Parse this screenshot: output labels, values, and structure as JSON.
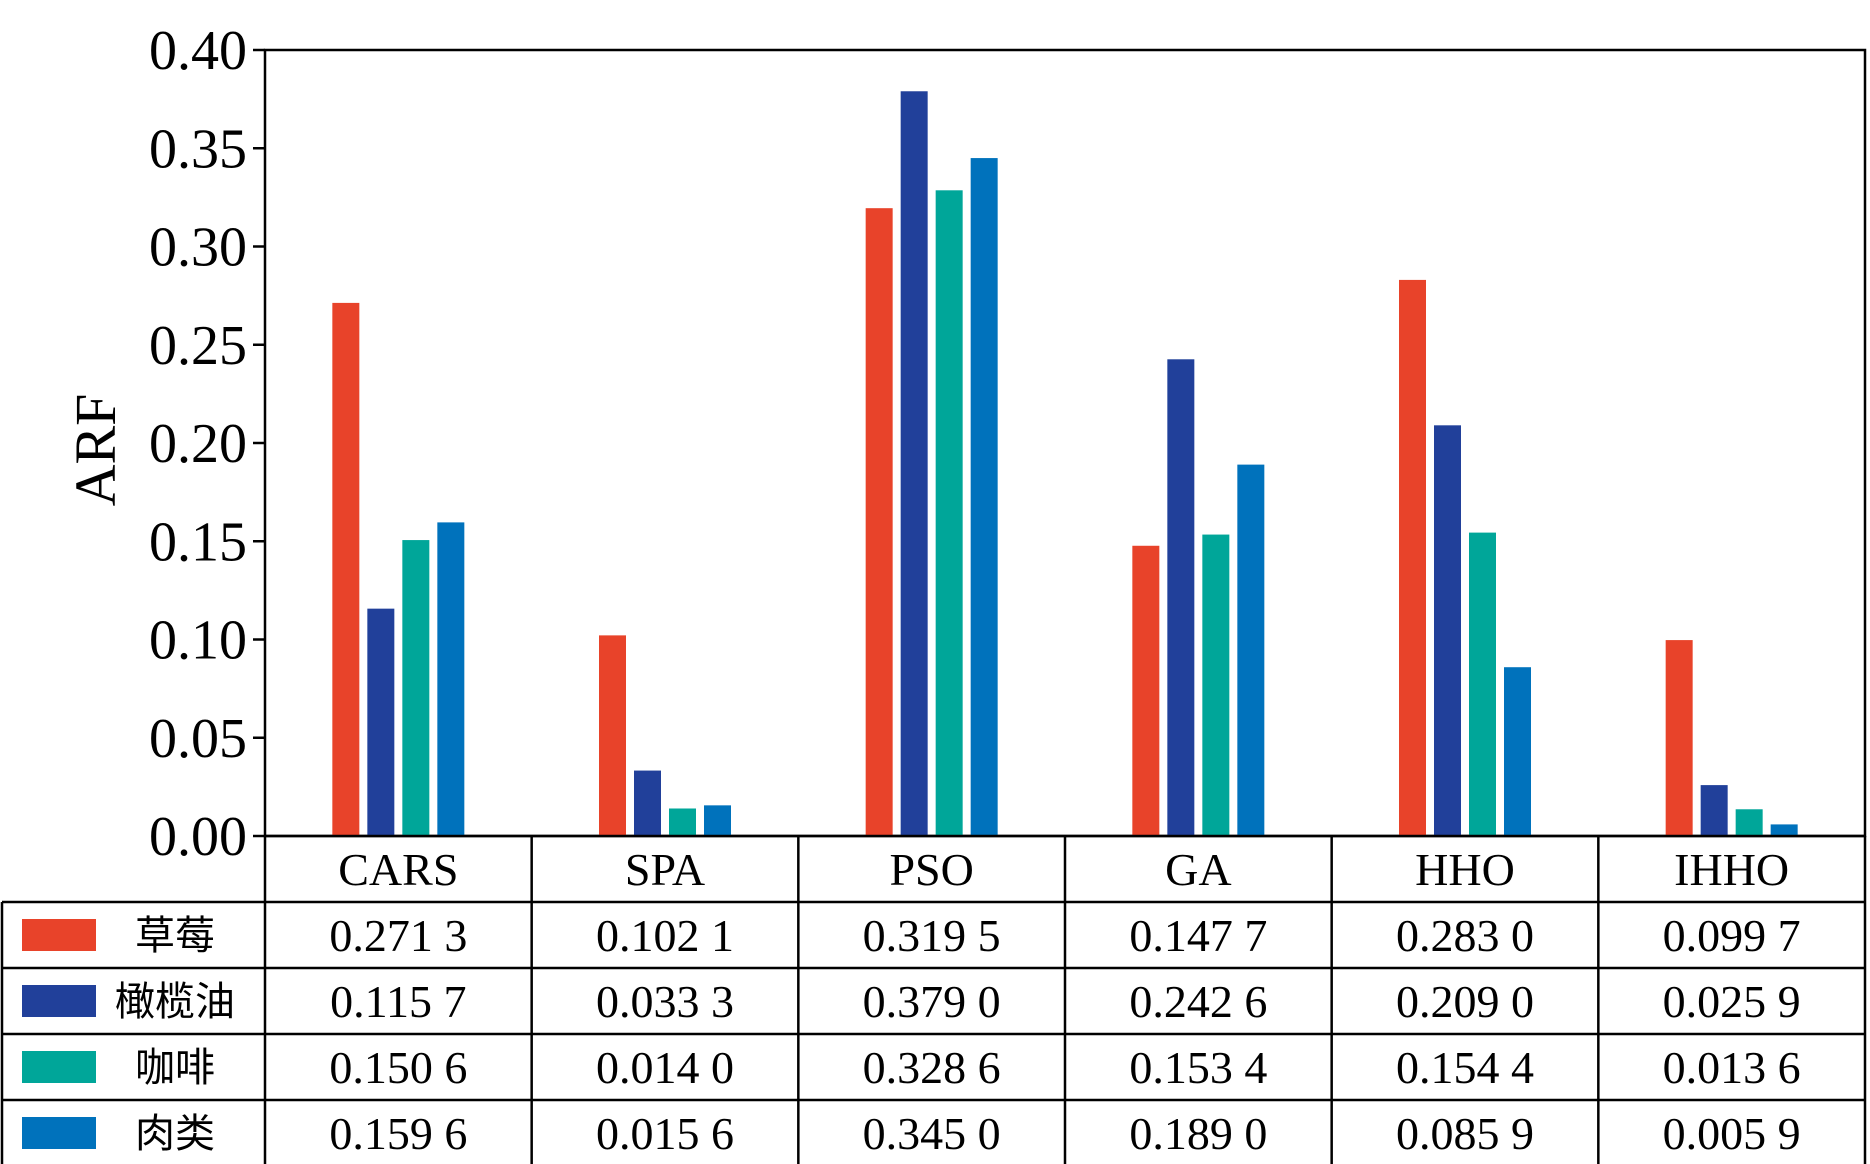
{
  "chart_data": {
    "type": "bar",
    "ylabel": "ARF",
    "xlabel": "",
    "title": "",
    "ylim": [
      0,
      0.4
    ],
    "yticks": [
      "0.00",
      "0.05",
      "0.10",
      "0.15",
      "0.20",
      "0.25",
      "0.30",
      "0.35",
      "0.40"
    ],
    "categories": [
      "CARS",
      "SPA",
      "PSO",
      "GA",
      "HHO",
      "IHHO"
    ],
    "grid": false,
    "legend_placement": "bottom-table",
    "series": [
      {
        "name": "草莓",
        "color": "#e8432a",
        "values": [
          0.2713,
          0.1021,
          0.3195,
          0.1477,
          0.283,
          0.0997
        ],
        "labels": [
          "0.271 3",
          "0.102 1",
          "0.319 5",
          "0.147 7",
          "0.283 0",
          "0.099 7"
        ]
      },
      {
        "name": "橄榄油",
        "color": "#21409a",
        "values": [
          0.1157,
          0.0333,
          0.379,
          0.2426,
          0.209,
          0.0259
        ],
        "labels": [
          "0.115 7",
          "0.033 3",
          "0.379 0",
          "0.242 6",
          "0.209 0",
          "0.025 9"
        ]
      },
      {
        "name": "咖啡",
        "color": "#00a699",
        "values": [
          0.1506,
          0.014,
          0.3286,
          0.1534,
          0.1544,
          0.0136
        ],
        "labels": [
          "0.150 6",
          "0.014 0",
          "0.328 6",
          "0.153 4",
          "0.154 4",
          "0.013 6"
        ]
      },
      {
        "name": "肉类",
        "color": "#0072bc",
        "values": [
          0.1596,
          0.0156,
          0.345,
          0.189,
          0.0859,
          0.0059
        ],
        "labels": [
          "0.159 6",
          "0.015 6",
          "0.345 0",
          "0.189 0",
          "0.085 9",
          "0.005 9"
        ]
      }
    ]
  }
}
